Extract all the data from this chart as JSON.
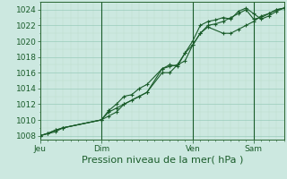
{
  "bg_color": "#cce8e0",
  "grid_color_major": "#99ccbb",
  "grid_color_minor": "#bbddcc",
  "line_color": "#1a5c2a",
  "xlabel": "Pression niveau de la mer( hPa )",
  "xlabel_fontsize": 8,
  "tick_fontsize": 6.5,
  "ylim": [
    1007.5,
    1025.0
  ],
  "yticks": [
    1008,
    1010,
    1012,
    1014,
    1016,
    1018,
    1020,
    1022,
    1024
  ],
  "day_labels": [
    "Jeu",
    "Dim",
    "Ven",
    "Sam"
  ],
  "day_positions": [
    0,
    8,
    20,
    28
  ],
  "xlim": [
    0,
    32
  ],
  "series1_x": [
    0,
    1,
    2,
    3,
    8,
    9,
    10,
    11,
    12,
    13,
    14,
    16,
    17,
    18,
    19,
    20,
    21,
    22,
    23,
    24,
    25,
    26,
    27,
    28,
    29,
    30,
    31,
    32
  ],
  "series1_y": [
    1008,
    1008.3,
    1008.7,
    1009.0,
    1010.0,
    1011.0,
    1011.5,
    1012.0,
    1012.5,
    1013.0,
    1013.5,
    1016.5,
    1016.8,
    1017.0,
    1017.5,
    1019.5,
    1021.0,
    1022.0,
    1022.2,
    1022.5,
    1023.0,
    1023.5,
    1024.0,
    1022.8,
    1023.0,
    1023.5,
    1024.0,
    1024.2
  ],
  "series2_x": [
    0,
    1,
    2,
    3,
    8,
    9,
    10,
    11,
    12,
    13,
    14,
    16,
    17,
    18,
    19,
    20,
    21,
    22,
    23,
    24,
    25,
    26,
    27,
    28,
    29,
    30,
    31,
    32
  ],
  "series2_y": [
    1008,
    1008.3,
    1008.7,
    1009.0,
    1010.0,
    1011.2,
    1012.0,
    1013.0,
    1013.2,
    1014.0,
    1014.5,
    1016.5,
    1017.0,
    1016.8,
    1018.5,
    1020.0,
    1022.0,
    1022.5,
    1022.7,
    1023.0,
    1022.8,
    1023.8,
    1024.2,
    1023.5,
    1022.8,
    1023.2,
    1023.8,
    1024.2
  ],
  "series3_x": [
    0,
    2,
    3,
    8,
    9,
    10,
    11,
    14,
    16,
    17,
    18,
    19,
    20,
    21,
    22,
    24,
    25,
    26,
    27,
    28,
    29,
    30,
    31,
    32
  ],
  "series3_y": [
    1008,
    1008.5,
    1009.0,
    1010.0,
    1010.5,
    1011.0,
    1012.0,
    1013.5,
    1016.0,
    1016.0,
    1017.0,
    1018.5,
    1019.5,
    1021.0,
    1021.8,
    1021.0,
    1021.0,
    1021.5,
    1022.0,
    1022.5,
    1023.2,
    1023.5,
    1024.0,
    1024.2
  ],
  "vline_positions": [
    8,
    20,
    28
  ],
  "vline_color": "#1a5c2a",
  "spine_color": "#2a6632"
}
